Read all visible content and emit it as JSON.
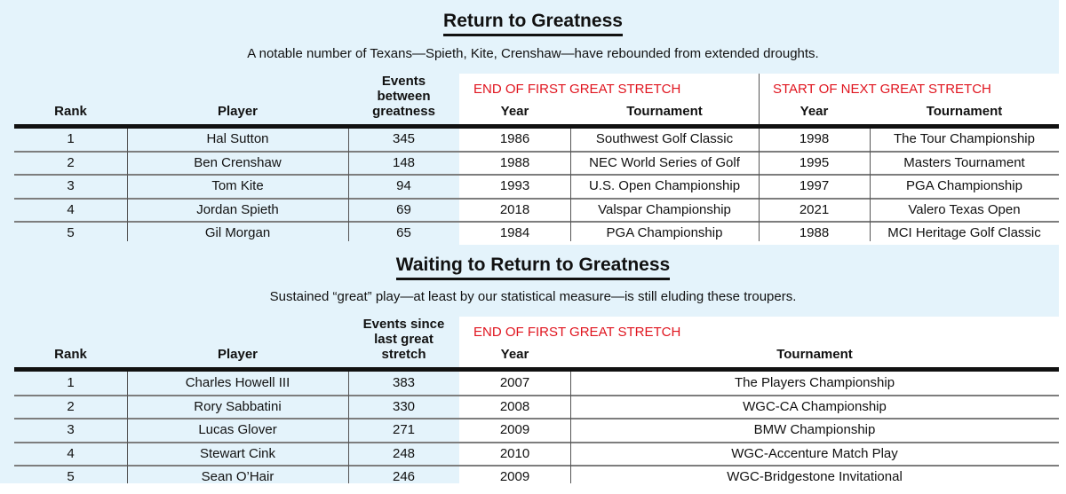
{
  "table1": {
    "title": "Return to Greatness",
    "subtitle": "A notable number of Texans—Spieth, Kite, Crenshaw—have rebounded from extended droughts.",
    "headers": {
      "rank": "Rank",
      "player": "Player",
      "events": [
        "Events",
        "between",
        "greatness"
      ],
      "group1": "END OF FIRST GREAT STRETCH",
      "group2": "START OF NEXT GREAT STRETCH",
      "year1": "Year",
      "tournament1": "Tournament",
      "year2": "Year",
      "tournament2": "Tournament"
    },
    "rows": [
      [
        "1",
        "Hal Sutton",
        "345",
        "1986",
        "Southwest Golf Classic",
        "1998",
        "The Tour Championship"
      ],
      [
        "2",
        "Ben Crenshaw",
        "148",
        "1988",
        "NEC World Series of Golf",
        "1995",
        "Masters Tournament"
      ],
      [
        "3",
        "Tom Kite",
        "94",
        "1993",
        "U.S. Open Championship",
        "1997",
        "PGA Championship"
      ],
      [
        "4",
        "Jordan Spieth",
        "69",
        "2018",
        "Valspar Championship",
        "2021",
        "Valero Texas Open"
      ],
      [
        "5",
        "Gil Morgan",
        "65",
        "1984",
        "PGA Championship",
        "1988",
        "MCI Heritage Golf Classic"
      ]
    ]
  },
  "table2": {
    "title": "Waiting to Return to Greatness",
    "subtitle": "Sustained “great” play—at least by our statistical measure—is still eluding these troupers.",
    "headers": {
      "rank": "Rank",
      "player": "Player",
      "events": [
        "Events since",
        "last great",
        "stretch"
      ],
      "group1": "END OF FIRST GREAT STRETCH",
      "year1": "Year",
      "tournament1": "Tournament"
    },
    "rows": [
      [
        "1",
        "Charles Howell III",
        "383",
        "2007",
        "The Players Championship"
      ],
      [
        "2",
        "Rory Sabbatini",
        "330",
        "2008",
        "WGC-CA Championship"
      ],
      [
        "3",
        "Lucas Glover",
        "271",
        "2009",
        "BMW Championship"
      ],
      [
        "4",
        "Stewart Cink",
        "248",
        "2010",
        "WGC-Accenture Match Play"
      ],
      [
        "5",
        "Sean O’Hair",
        "246",
        "2009",
        "WGC-Bridgestone Invitational"
      ]
    ]
  },
  "colors": {
    "background": "#e4f3fb",
    "accent_red": "#e0141e",
    "panel": "#ffffff"
  }
}
